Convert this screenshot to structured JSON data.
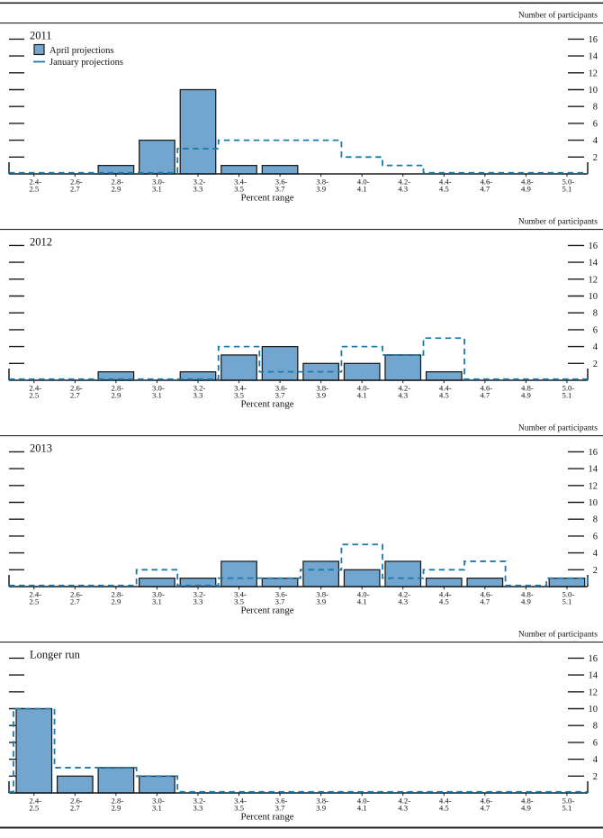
{
  "figure": {
    "participants_axis_label": "Number of participants",
    "x_axis_title": "Percent range",
    "legend": {
      "april_label": "April projections",
      "january_label": "January projections"
    },
    "colors": {
      "bar_fill": "#73a6ce",
      "bar_stroke": "#1a1a1a",
      "dash_line": "#1b7aab",
      "axis": "#1a1a1a",
      "text": "#111111",
      "rule": "#222222"
    }
  },
  "chart_data": [
    {
      "type": "bar",
      "title": "2011",
      "categories": [
        "2.4-2.5",
        "2.6-2.7",
        "2.8-2.9",
        "3.0-3.1",
        "3.2-3.3",
        "3.4-3.5",
        "3.6-3.7",
        "3.8-3.9",
        "4.0-4.1",
        "4.2-4.3",
        "4.4-4.5",
        "4.6-4.7",
        "4.8-4.9",
        "5.0-5.1"
      ],
      "series": [
        {
          "name": "April projections",
          "style": "filled-bar",
          "values": [
            0,
            0,
            1,
            4,
            10,
            1,
            1,
            0,
            0,
            0,
            0,
            0,
            0,
            0
          ]
        },
        {
          "name": "January projections",
          "style": "dashed-step-outline",
          "values": [
            0,
            0,
            0,
            0,
            3,
            4,
            4,
            4,
            2,
            1,
            0,
            0,
            0,
            0
          ]
        }
      ],
      "xlabel": "Percent range",
      "ylabel": "Number of participants",
      "ylim": [
        0,
        17
      ],
      "yticks": [
        2,
        4,
        6,
        8,
        10,
        12,
        14,
        16
      ],
      "grid": false,
      "legend_visible": true,
      "legend_position": "top-left"
    },
    {
      "type": "bar",
      "title": "2012",
      "categories": [
        "2.4-2.5",
        "2.6-2.7",
        "2.8-2.9",
        "3.0-3.1",
        "3.2-3.3",
        "3.4-3.5",
        "3.6-3.7",
        "3.8-3.9",
        "4.0-4.1",
        "4.2-4.3",
        "4.4-4.5",
        "4.6-4.7",
        "4.8-4.9",
        "5.0-5.1"
      ],
      "series": [
        {
          "name": "April projections",
          "style": "filled-bar",
          "values": [
            0,
            0,
            1,
            0,
            1,
            3,
            4,
            2,
            2,
            3,
            1,
            0,
            0,
            0
          ]
        },
        {
          "name": "January projections",
          "style": "dashed-step-outline",
          "values": [
            0,
            0,
            0,
            0,
            0,
            4,
            1,
            1,
            4,
            3,
            5,
            0,
            0,
            0
          ]
        }
      ],
      "xlabel": "Percent range",
      "ylabel": "Number of participants",
      "ylim": [
        0,
        17
      ],
      "yticks": [
        2,
        4,
        6,
        8,
        10,
        12,
        14,
        16
      ],
      "grid": false,
      "legend_visible": false,
      "legend_position": "none"
    },
    {
      "type": "bar",
      "title": "2013",
      "categories": [
        "2.4-2.5",
        "2.6-2.7",
        "2.8-2.9",
        "3.0-3.1",
        "3.2-3.3",
        "3.4-3.5",
        "3.6-3.7",
        "3.8-3.9",
        "4.0-4.1",
        "4.2-4.3",
        "4.4-4.5",
        "4.6-4.7",
        "4.8-4.9",
        "5.0-5.1"
      ],
      "series": [
        {
          "name": "April projections",
          "style": "filled-bar",
          "values": [
            0,
            0,
            0,
            1,
            1,
            3,
            1,
            3,
            2,
            3,
            1,
            1,
            0,
            1
          ]
        },
        {
          "name": "January projections",
          "style": "dashed-step-outline",
          "values": [
            0,
            0,
            0,
            2,
            0,
            1,
            1,
            2,
            5,
            1,
            2,
            3,
            0,
            1
          ]
        }
      ],
      "xlabel": "Percent range",
      "ylabel": "Number of participants",
      "ylim": [
        0,
        17
      ],
      "yticks": [
        2,
        4,
        6,
        8,
        10,
        12,
        14,
        16
      ],
      "grid": false,
      "legend_visible": false,
      "legend_position": "none"
    },
    {
      "type": "bar",
      "title": "Longer run",
      "categories": [
        "2.4-2.5",
        "2.6-2.7",
        "2.8-2.9",
        "3.0-3.1",
        "3.2-3.3",
        "3.4-3.5",
        "3.6-3.7",
        "3.8-3.9",
        "4.0-4.1",
        "4.2-4.3",
        "4.4-4.5",
        "4.6-4.7",
        "4.8-4.9",
        "5.0-5.1"
      ],
      "series": [
        {
          "name": "April projections",
          "style": "filled-bar",
          "values": [
            10,
            2,
            3,
            2,
            0,
            0,
            0,
            0,
            0,
            0,
            0,
            0,
            0,
            0
          ]
        },
        {
          "name": "January projections",
          "style": "dashed-step-outline",
          "values": [
            10,
            3,
            3,
            2,
            0,
            0,
            0,
            0,
            0,
            0,
            0,
            0,
            0,
            0
          ]
        }
      ],
      "xlabel": "Percent range",
      "ylabel": "Number of participants",
      "ylim": [
        0,
        17
      ],
      "yticks": [
        2,
        4,
        6,
        8,
        10,
        12,
        14,
        16
      ],
      "grid": false,
      "legend_visible": false,
      "legend_position": "none"
    }
  ]
}
